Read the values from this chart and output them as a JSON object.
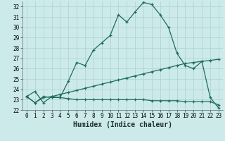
{
  "xlabel": "Humidex (Indice chaleur)",
  "xlim": [
    -0.5,
    23.5
  ],
  "ylim": [
    22,
    32.5
  ],
  "yticks": [
    22,
    23,
    24,
    25,
    26,
    27,
    28,
    29,
    30,
    31,
    32
  ],
  "xticks": [
    0,
    1,
    2,
    3,
    4,
    5,
    6,
    7,
    8,
    9,
    10,
    11,
    12,
    13,
    14,
    15,
    16,
    17,
    18,
    19,
    20,
    21,
    22,
    23
  ],
  "background_color": "#cdeaea",
  "grid_color": "#b0d4d4",
  "line_color": "#1e6b5e",
  "line1_y": [
    23.3,
    23.8,
    22.7,
    23.3,
    23.2,
    24.8,
    26.6,
    26.3,
    27.8,
    28.5,
    29.2,
    31.2,
    30.5,
    31.5,
    32.4,
    32.2,
    31.2,
    30.0,
    27.5,
    26.3,
    26.0,
    26.7,
    23.2,
    22.2
  ],
  "line2_y": [
    23.3,
    22.7,
    23.3,
    23.2,
    23.2,
    23.1,
    23.0,
    23.0,
    23.0,
    23.0,
    23.0,
    23.0,
    23.0,
    23.0,
    23.0,
    22.9,
    22.9,
    22.9,
    22.9,
    22.8,
    22.8,
    22.8,
    22.8,
    22.5
  ],
  "line3_y": [
    23.3,
    22.7,
    23.2,
    23.3,
    23.5,
    23.7,
    23.9,
    24.1,
    24.3,
    24.5,
    24.7,
    24.9,
    25.1,
    25.3,
    25.5,
    25.7,
    25.9,
    26.1,
    26.3,
    26.5,
    26.6,
    26.7,
    26.8,
    26.9
  ]
}
